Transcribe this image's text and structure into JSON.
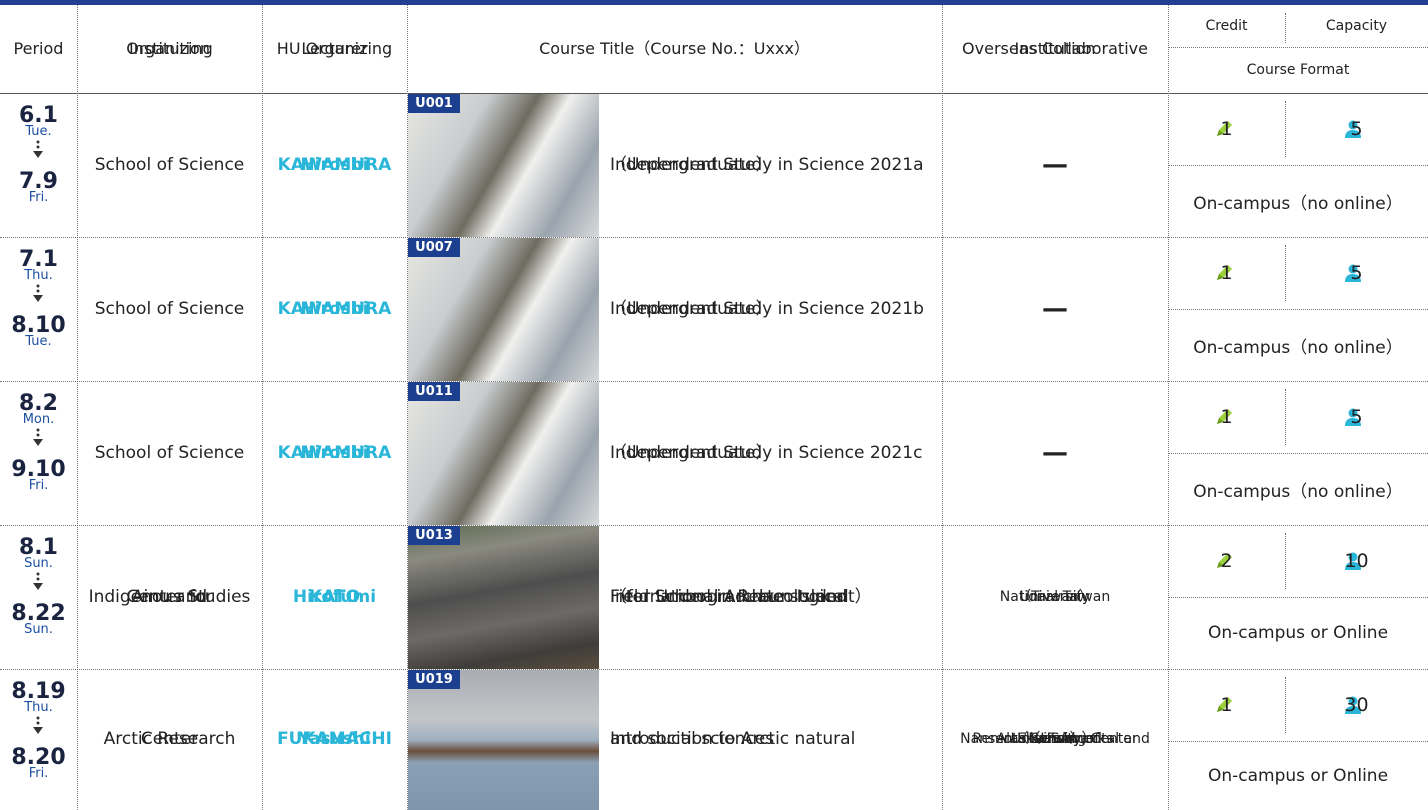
{
  "header": {
    "period": "Period",
    "organizing_institution": [
      "Organizing",
      "Institution"
    ],
    "hu_lecturer": [
      "HU Organizing",
      "Lecturer"
    ],
    "course_title": "Course Title（Course No.：Uxxx）",
    "overseas_institution": [
      "Overseas Collaborative",
      "Institution"
    ],
    "credit": "Credit",
    "capacity": "Capacity",
    "course_format": "Course Format"
  },
  "courses": [
    {
      "start_date": "6.1",
      "start_day": "Tue.",
      "end_date": "7.9",
      "end_day": "Fri.",
      "institution": [
        "School of Science"
      ],
      "lecturer": [
        "KAWAMURA",
        "Hiroshi"
      ],
      "course_no": "U001",
      "title": [
        "Independent Study in Science 2021a",
        "（Undergraduate）"
      ],
      "overseas": [
        "—"
      ],
      "credit": 1,
      "capacity": 5,
      "format": "On-campus（no online）"
    },
    {
      "start_date": "7.1",
      "start_day": "Thu.",
      "end_date": "8.10",
      "end_day": "Tue.",
      "institution": [
        "School of Science"
      ],
      "lecturer": [
        "KAWAMURA",
        "Hiroshi"
      ],
      "course_no": "U007",
      "title": [
        "Independent Study in Science 2021b",
        "（Undergraduate）"
      ],
      "overseas": [
        "—"
      ],
      "credit": 1,
      "capacity": 5,
      "format": "On-campus（no online）"
    },
    {
      "start_date": "8.2",
      "start_day": "Mon.",
      "end_date": "9.10",
      "end_day": "Fri.",
      "institution": [
        "School of Science"
      ],
      "lecturer": [
        "KAWAMURA",
        "Hiroshi"
      ],
      "course_no": "U011",
      "title": [
        "Independent Study in Science 2021c",
        "（Undergraduate）"
      ],
      "overseas": [
        "—"
      ],
      "credit": 1,
      "capacity": 5,
      "format": "On-campus（no online）"
    },
    {
      "start_date": "8.1",
      "start_day": "Sun.",
      "end_date": "8.22",
      "end_day": "Sun.",
      "institution": [
        "Center for",
        "Ainu and",
        "Indigenous Studies"
      ],
      "lecturer": [
        "KATO",
        "Hirofumi"
      ],
      "course_no": "U013",
      "title": [
        "International Archaeological",
        "Field School in Rebun Island",
        "（for Undergraduate student）"
      ],
      "overseas": [
        "National Taiwan",
        "University",
        "（Taiwan）"
      ],
      "credit": 2,
      "capacity": 10,
      "format": "On-campus or Online"
    },
    {
      "start_date": "8.19",
      "start_day": "Thu.",
      "end_date": "8.20",
      "end_day": "Fri.",
      "institution": [
        "Arctic Research",
        "Center"
      ],
      "lecturer": [
        "FUKAMACHI",
        "Yasushi"
      ],
      "course_no": "U019",
      "title": [
        "Introduction to Arctic natural",
        "and social sciences"
      ],
      "overseas": [
        "University of",
        "Alaska Fairbanks",
        "（USA）",
        "Nansen Environmental and",
        "Remote Sensing Center",
        "（Norway）"
      ],
      "credit": 1,
      "capacity": 30,
      "format": "On-campus or Online"
    }
  ]
}
